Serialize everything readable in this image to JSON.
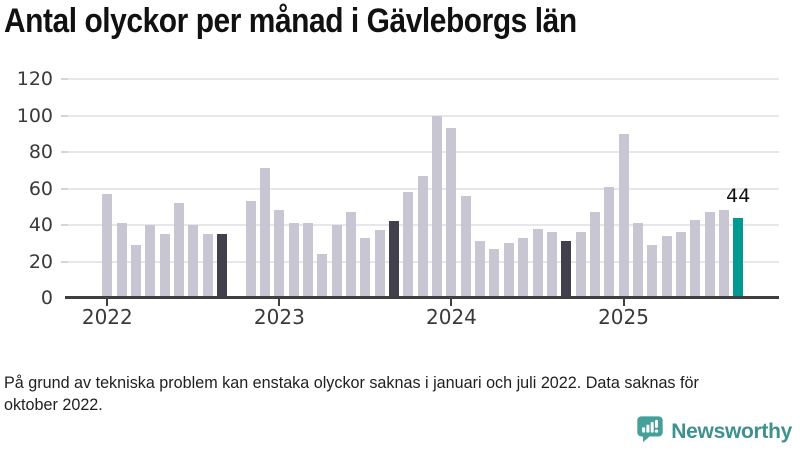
{
  "title": "Antal olyckor per månad i Gävleborgs län",
  "footer": {
    "lines": [
      "På grund av tekniska problem kan enstaka olyckor saknas i januari och juli 2022. Data saknas för",
      "oktober 2022."
    ]
  },
  "brand": {
    "name": "Newsworthy",
    "logo_icon": "speech-bubble-bar-chart-exclamation"
  },
  "colors": {
    "bar_default": "#c8c6d2",
    "bar_dark": "#42404d",
    "bar_accent": "#009a92",
    "axis": "#3f3f3f",
    "grid": "#e7e6eb",
    "logo_teal": "#45a09a",
    "wordmark_teal": "#3e918c"
  },
  "chart_data": {
    "type": "bar",
    "title": "Antal olyckor per månad i Gävleborgs län",
    "xlabel": "",
    "ylabel": "",
    "ylim": [
      0,
      120
    ],
    "y_ticks": [
      0,
      20,
      40,
      60,
      80,
      100,
      120
    ],
    "grid": true,
    "legend": "none",
    "x_year_ticks": [
      {
        "label": "2022",
        "slot": 0
      },
      {
        "label": "2023",
        "slot": 12
      },
      {
        "label": "2024",
        "slot": 24
      },
      {
        "label": "2025",
        "slot": 36
      }
    ],
    "annotation": {
      "text": "44",
      "slot": 44
    },
    "months": [
      {
        "x": "2022-01",
        "value": 57,
        "role": "default"
      },
      {
        "x": "2022-02",
        "value": 41,
        "role": "default"
      },
      {
        "x": "2022-03",
        "value": 29,
        "role": "default"
      },
      {
        "x": "2022-04",
        "value": 40,
        "role": "default"
      },
      {
        "x": "2022-05",
        "value": 35,
        "role": "default"
      },
      {
        "x": "2022-06",
        "value": 52,
        "role": "default"
      },
      {
        "x": "2022-07",
        "value": 40,
        "role": "default"
      },
      {
        "x": "2022-08",
        "value": 35,
        "role": "default"
      },
      {
        "x": "2022-09",
        "value": 35,
        "role": "dark"
      },
      {
        "x": "2022-10",
        "value": null,
        "role": "missing"
      },
      {
        "x": "2022-11",
        "value": 53,
        "role": "default"
      },
      {
        "x": "2022-12",
        "value": 71,
        "role": "default"
      },
      {
        "x": "2023-01",
        "value": 48,
        "role": "default"
      },
      {
        "x": "2023-02",
        "value": 41,
        "role": "default"
      },
      {
        "x": "2023-03",
        "value": 41,
        "role": "default"
      },
      {
        "x": "2023-04",
        "value": 24,
        "role": "default"
      },
      {
        "x": "2023-05",
        "value": 40,
        "role": "default"
      },
      {
        "x": "2023-06",
        "value": 47,
        "role": "default"
      },
      {
        "x": "2023-07",
        "value": 33,
        "role": "default"
      },
      {
        "x": "2023-08",
        "value": 37,
        "role": "default"
      },
      {
        "x": "2023-09",
        "value": 42,
        "role": "dark"
      },
      {
        "x": "2023-10",
        "value": 58,
        "role": "default"
      },
      {
        "x": "2023-11",
        "value": 67,
        "role": "default"
      },
      {
        "x": "2023-12",
        "value": 100,
        "role": "default"
      },
      {
        "x": "2024-01",
        "value": 93,
        "role": "default"
      },
      {
        "x": "2024-02",
        "value": 56,
        "role": "default"
      },
      {
        "x": "2024-03",
        "value": 31,
        "role": "default"
      },
      {
        "x": "2024-04",
        "value": 27,
        "role": "default"
      },
      {
        "x": "2024-05",
        "value": 30,
        "role": "default"
      },
      {
        "x": "2024-06",
        "value": 33,
        "role": "default"
      },
      {
        "x": "2024-07",
        "value": 38,
        "role": "default"
      },
      {
        "x": "2024-08",
        "value": 36,
        "role": "default"
      },
      {
        "x": "2024-09",
        "value": 31,
        "role": "dark"
      },
      {
        "x": "2024-10",
        "value": 36,
        "role": "default"
      },
      {
        "x": "2024-11",
        "value": 47,
        "role": "default"
      },
      {
        "x": "2024-12",
        "value": 61,
        "role": "default"
      },
      {
        "x": "2025-01",
        "value": 90,
        "role": "default"
      },
      {
        "x": "2025-02",
        "value": 41,
        "role": "default"
      },
      {
        "x": "2025-03",
        "value": 29,
        "role": "default"
      },
      {
        "x": "2025-04",
        "value": 34,
        "role": "default"
      },
      {
        "x": "2025-05",
        "value": 36,
        "role": "default"
      },
      {
        "x": "2025-06",
        "value": 43,
        "role": "default"
      },
      {
        "x": "2025-07",
        "value": 47,
        "role": "default"
      },
      {
        "x": "2025-08",
        "value": 48,
        "role": "default"
      },
      {
        "x": "2025-09",
        "value": 44,
        "role": "accent"
      }
    ]
  }
}
